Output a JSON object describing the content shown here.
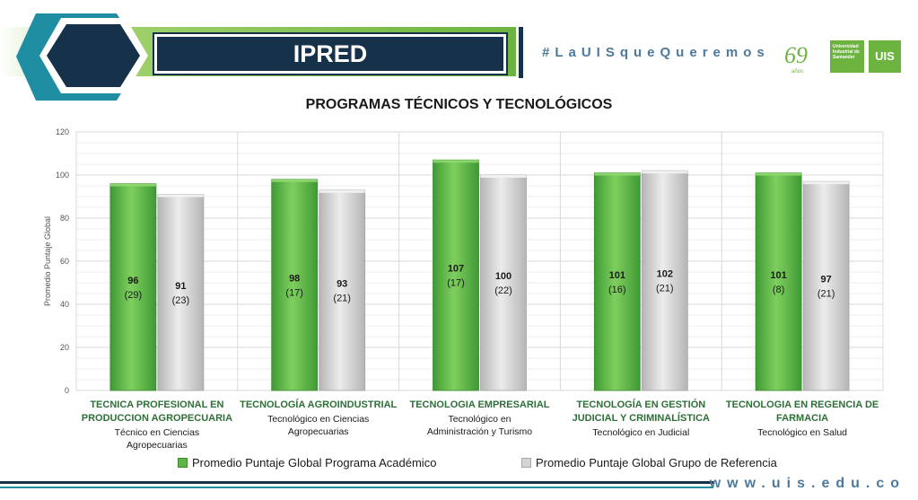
{
  "header": {
    "title": "IPRED",
    "hashtag": "#LaUISqueQueremos",
    "years_badge": "69",
    "years_word": "años",
    "university_name": "Universidad Industrial de Santander",
    "logo_text": "UIS",
    "footer_url": "www.uis.edu.co"
  },
  "colors": {
    "dark_blue": "#15324a",
    "teal": "#1f8ea3",
    "green": "#6cb33f",
    "series_program": "#5cb544",
    "series_reference": "#d4d4d4"
  },
  "chart_data": {
    "type": "bar",
    "title": "PROGRAMAS TÉCNICOS Y TECNOLÓGICOS",
    "ylabel": "Promedio Puntaje Global",
    "xlabel": "",
    "ylim": [
      0,
      120
    ],
    "yticks": [
      0,
      20,
      40,
      60,
      80,
      100,
      120
    ],
    "grid": true,
    "legend_position": "bottom",
    "categories": [
      {
        "name": "TECNICA PROFESIONAL EN PRODUCCION AGROPECUARIA",
        "subtitle": "Técnico en Ciencias Agropecuarias"
      },
      {
        "name": "TECNOLOGÍA AGROINDUSTRIAL",
        "subtitle": "Tecnológico en Ciencias Agropecuarias"
      },
      {
        "name": "TECNOLOGIA EMPRESARIAL",
        "subtitle": "Tecnológico en Administración y Turismo"
      },
      {
        "name": "TECNOLOGÍA EN GESTIÓN JUDICIAL Y CRIMINALÍSTICA",
        "subtitle": "Tecnológico en Judicial"
      },
      {
        "name": "TECNOLOGIA EN REGENCIA DE FARMACIA",
        "subtitle": "Tecnológico en Salud"
      }
    ],
    "series": [
      {
        "name": "Promedio Puntaje Global Programa Académico",
        "values": [
          96,
          98,
          107,
          101,
          101
        ],
        "counts": [
          "(29)",
          "(17)",
          "(17)",
          "(16)",
          "(8)"
        ]
      },
      {
        "name": "Promedio Puntaje Global Grupo de Referencia",
        "values": [
          91,
          93,
          100,
          102,
          97
        ],
        "counts": [
          "(23)",
          "(21)",
          "(22)",
          "(21)",
          "(21)"
        ]
      }
    ]
  }
}
